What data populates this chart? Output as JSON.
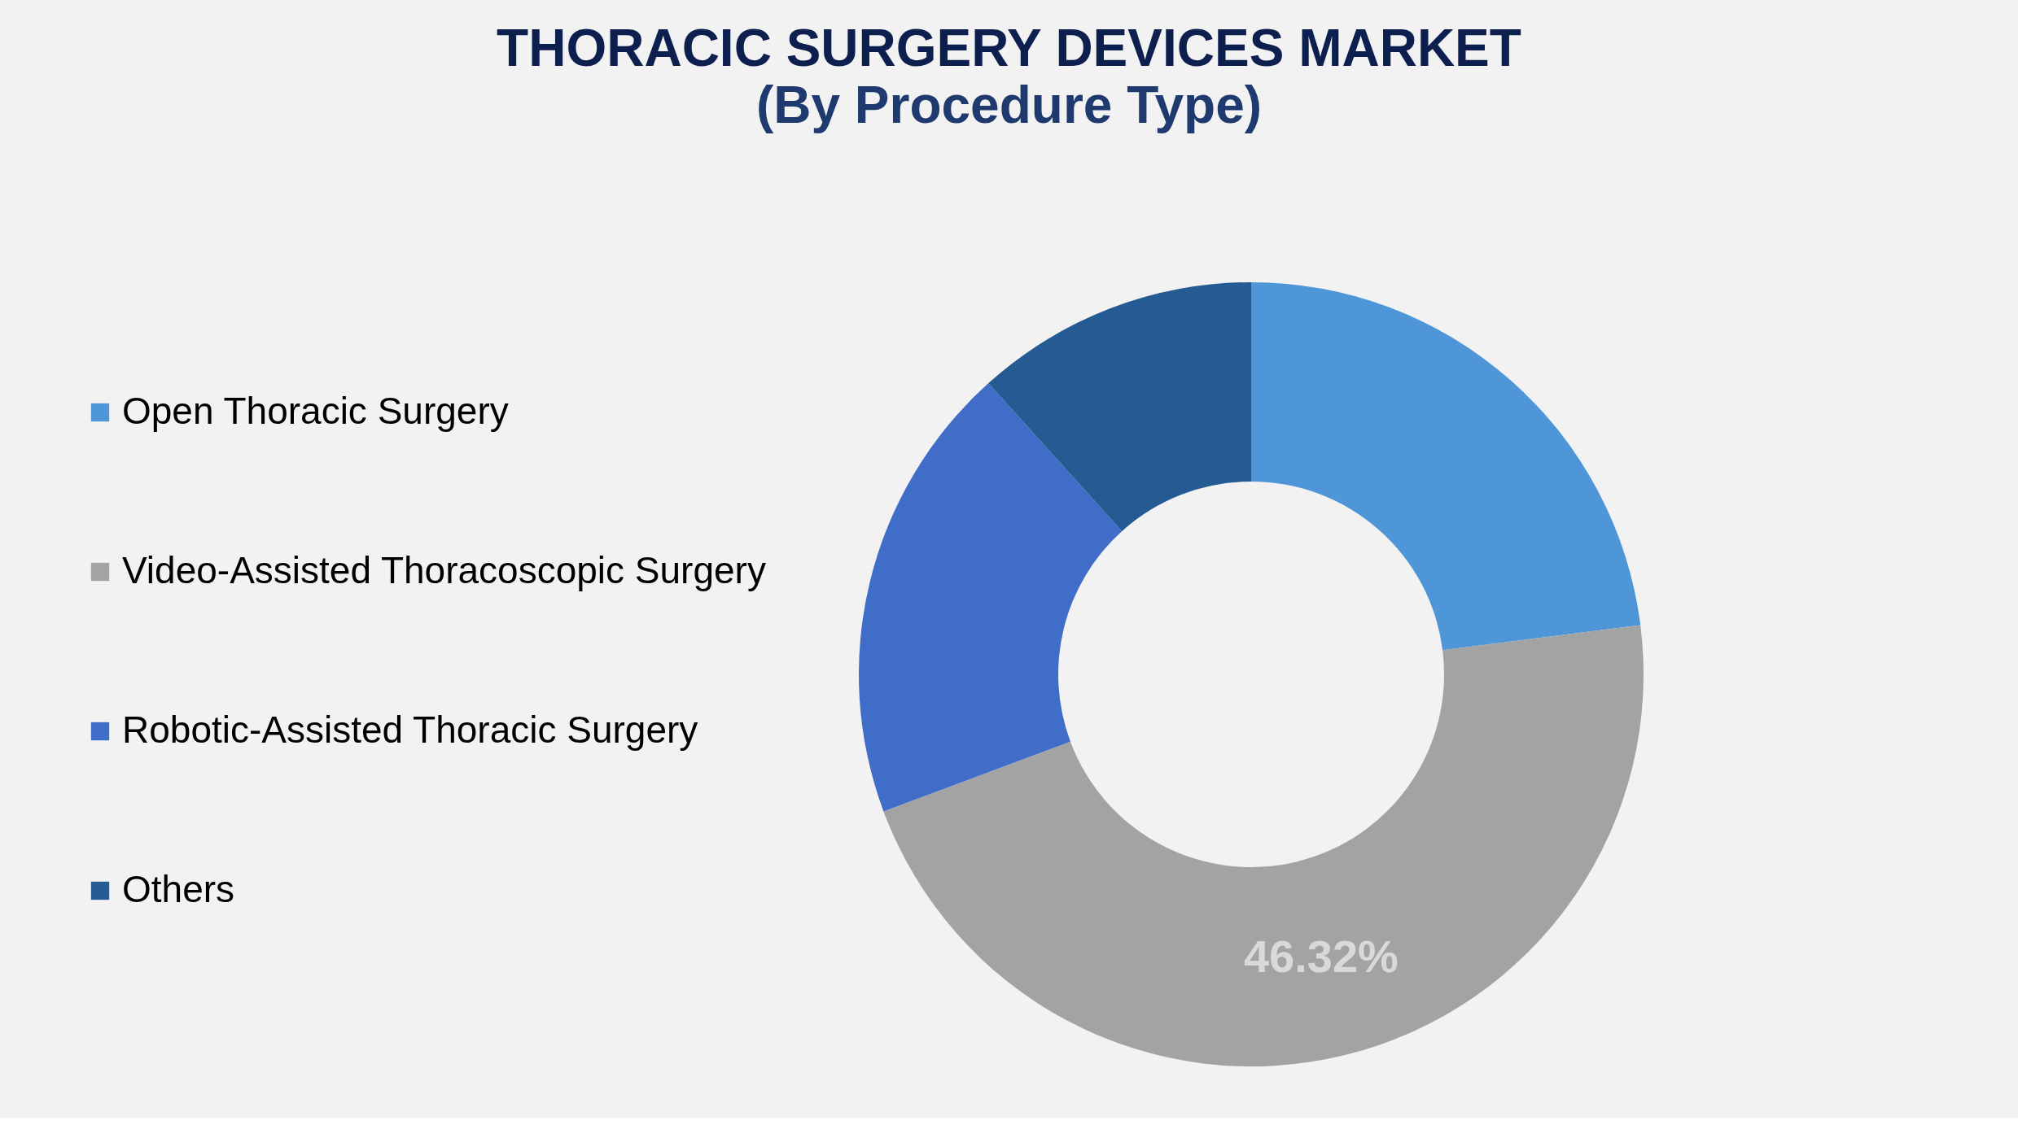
{
  "chart_data": {
    "type": "donut",
    "title": "THORACIC SURGERY DEVICES MARKET",
    "subtitle": "(By Procedure Type)",
    "categories": [
      "Open Thoracic Surgery",
      "Video-Assisted Thoracoscopic Surgery",
      "Robotic-Assisted Thoracic Surgery",
      "Others"
    ],
    "values": [
      23.0,
      46.32,
      19.0,
      11.68
    ],
    "colors": [
      "#4e96d8",
      "#a3a3a3",
      "#3f6dc8",
      "#235b92"
    ],
    "value_labels": [
      null,
      "46.32%",
      null,
      null
    ],
    "legend": "left"
  }
}
